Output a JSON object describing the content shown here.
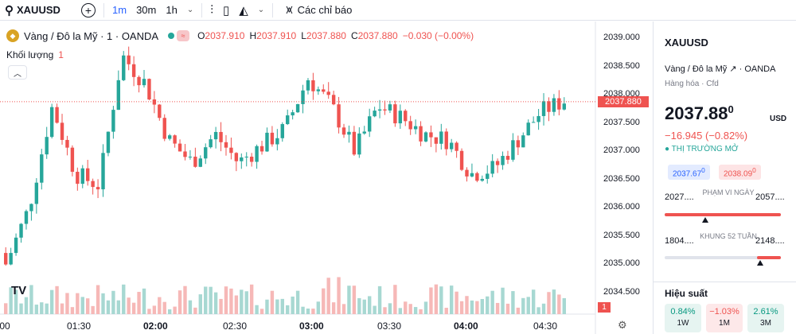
{
  "toolbar": {
    "symbol": "XAUUSD",
    "intervals": [
      "1m",
      "30m",
      "1h"
    ],
    "active_interval": "1m",
    "indicators_label": "Các chỉ báo",
    "icons": [
      "search-icon",
      "plus-icon",
      "chevron-down-icon",
      "bar-style-icon",
      "candle-icon",
      "area-icon",
      "indicators-icon"
    ]
  },
  "legend": {
    "title": "Vàng / Đô la Mỹ · 1 · OANDA",
    "open_label": "O",
    "open": "2037.910",
    "high_label": "H",
    "high": "2037.910",
    "low_label": "L",
    "low": "2037.880",
    "close_label": "C",
    "close": "2037.880",
    "change": "−0.030 (−0.00%)",
    "volume_label": "Khối lượng",
    "volume": "1"
  },
  "axis": {
    "y_ticks": [
      "2039.000",
      "2038.500",
      "2038.000",
      "2037.500",
      "2037.000",
      "2036.500",
      "2036.000",
      "2035.500",
      "2035.000",
      "2034.500"
    ],
    "x_ticks": [
      ":00",
      "01:30",
      "02:00",
      "02:30",
      "03:00",
      "03:30",
      "04:00",
      "04:30"
    ],
    "last_price_tag": "2037.880",
    "volume_tag": "1",
    "logo": "TV"
  },
  "colors": {
    "up": "#26a69a",
    "down": "#ef5350",
    "accent": "#2962ff",
    "gold": "#d9a324"
  },
  "chart_data": {
    "type": "candlestick",
    "symbol": "XAUUSD",
    "interval": "1m",
    "ylim": [
      2034.3,
      2039.3
    ],
    "series_sampled": [
      {
        "t": "01:00",
        "o": 2035.2,
        "h": 2035.6,
        "l": 2034.8,
        "c": 2035.0
      },
      {
        "t": "01:15",
        "o": 2035.0,
        "h": 2036.2,
        "l": 2034.6,
        "c": 2036.0
      },
      {
        "t": "01:20",
        "o": 2036.0,
        "h": 2038.0,
        "l": 2035.8,
        "c": 2037.8
      },
      {
        "t": "01:25",
        "o": 2037.6,
        "h": 2037.8,
        "l": 2036.3,
        "c": 2036.6
      },
      {
        "t": "01:30",
        "o": 2036.6,
        "h": 2037.2,
        "l": 2036.0,
        "c": 2036.4
      },
      {
        "t": "01:35",
        "o": 2036.4,
        "h": 2039.0,
        "l": 2036.2,
        "c": 2038.7
      },
      {
        "t": "01:45",
        "o": 2038.7,
        "h": 2038.9,
        "l": 2038.0,
        "c": 2038.2
      },
      {
        "t": "01:50",
        "o": 2038.2,
        "h": 2038.6,
        "l": 2037.0,
        "c": 2037.2
      },
      {
        "t": "02:00",
        "o": 2037.2,
        "h": 2037.4,
        "l": 2036.5,
        "c": 2036.8
      },
      {
        "t": "02:10",
        "o": 2036.8,
        "h": 2037.5,
        "l": 2036.6,
        "c": 2037.3
      },
      {
        "t": "02:20",
        "o": 2037.3,
        "h": 2037.4,
        "l": 2036.6,
        "c": 2036.8
      },
      {
        "t": "02:30",
        "o": 2036.8,
        "h": 2037.3,
        "l": 2036.7,
        "c": 2037.1
      },
      {
        "t": "02:45",
        "o": 2037.1,
        "h": 2037.6,
        "l": 2036.9,
        "c": 2037.4
      },
      {
        "t": "02:55",
        "o": 2037.4,
        "h": 2038.6,
        "l": 2037.2,
        "c": 2038.3
      },
      {
        "t": "03:00",
        "o": 2038.3,
        "h": 2038.4,
        "l": 2037.6,
        "c": 2037.8
      },
      {
        "t": "03:05",
        "o": 2037.8,
        "h": 2037.9,
        "l": 2036.9,
        "c": 2037.0
      },
      {
        "t": "03:15",
        "o": 2037.0,
        "h": 2038.0,
        "l": 2036.9,
        "c": 2037.8
      },
      {
        "t": "03:20",
        "o": 2037.8,
        "h": 2038.1,
        "l": 2037.4,
        "c": 2037.6
      },
      {
        "t": "03:30",
        "o": 2037.6,
        "h": 2037.7,
        "l": 2037.1,
        "c": 2037.3
      },
      {
        "t": "03:40",
        "o": 2037.3,
        "h": 2037.5,
        "l": 2036.9,
        "c": 2037.2
      },
      {
        "t": "03:50",
        "o": 2037.2,
        "h": 2037.3,
        "l": 2036.1,
        "c": 2036.6
      },
      {
        "t": "04:00",
        "o": 2036.6,
        "h": 2036.9,
        "l": 2036.5,
        "c": 2036.7
      },
      {
        "t": "04:10",
        "o": 2036.7,
        "h": 2037.3,
        "l": 2036.6,
        "c": 2037.2
      },
      {
        "t": "04:20",
        "o": 2037.2,
        "h": 2037.8,
        "l": 2037.1,
        "c": 2037.7
      },
      {
        "t": "04:30",
        "o": 2037.7,
        "h": 2038.0,
        "l": 2037.4,
        "c": 2037.9
      }
    ]
  },
  "panel": {
    "symbol": "XAUUSD",
    "description": "Vàng / Đô la Mỹ",
    "exchange": "· OANDA",
    "category": "Hàng hóa · Cfd",
    "price_main": "2037.88",
    "price_sup": "0",
    "currency": "USD",
    "change": "−16.945 (−0.82%)",
    "market_status": "● THỊ TRƯỜNG MỞ",
    "bid": "2037.67",
    "bid_sup": "0",
    "ask": "2038.09",
    "ask_sup": "0",
    "day_range": {
      "low": "2027....",
      "high": "2057....",
      "label": "PHẠM VI NGÀY",
      "position": 0.35
    },
    "week52_range": {
      "low": "1804....",
      "high": "2148....",
      "label": "KHUNG 52 TUẦN",
      "position": 0.82
    },
    "performance_label": "Hiệu suất",
    "performance": [
      {
        "value": "0.84%",
        "period": "1W",
        "direction": "up"
      },
      {
        "value": "−1.03%",
        "period": "1M",
        "direction": "down"
      },
      {
        "value": "2.61%",
        "period": "3M",
        "direction": "up"
      }
    ]
  }
}
